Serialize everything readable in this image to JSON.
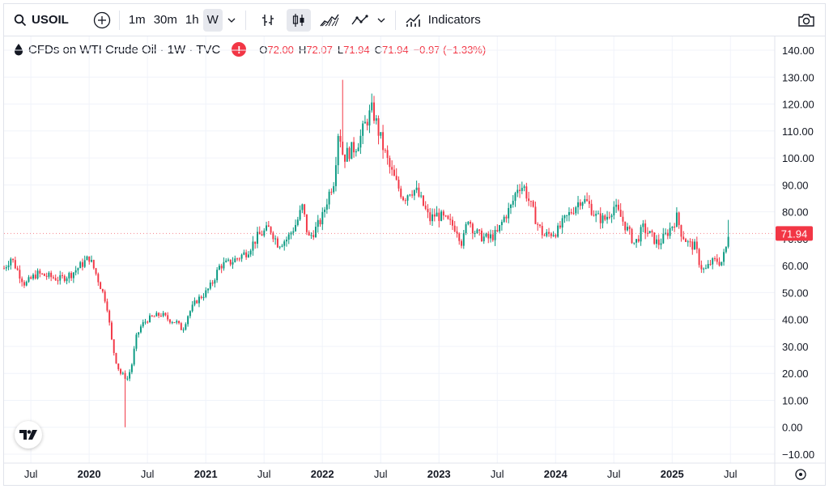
{
  "toolbar": {
    "symbol": "USOIL",
    "intervals": [
      "1m",
      "30m",
      "1h",
      "W"
    ],
    "active_interval": "W",
    "indicators_label": "Indicators"
  },
  "legend": {
    "title": "CFDs on WTI Crude Oil · 1W · TVC",
    "o_label": "O",
    "o_value": "72.00",
    "h_label": "H",
    "h_value": "72.07",
    "l_label": "L",
    "l_value": "71.94",
    "c_label": "C",
    "c_value": "71.94",
    "change": "−0.97 (−1.33%)"
  },
  "colors": {
    "up": "#089981",
    "down": "#f23645",
    "grid": "#f0f3fa",
    "text": "#131722"
  },
  "chart_data": {
    "type": "candlestick",
    "series_name": "CFDs on WTI Crude Oil",
    "interval": "1W",
    "last_price_label": "71.94",
    "ylim": [
      -15,
      145
    ],
    "y_ticks": [
      "140.00",
      "130.00",
      "120.00",
      "110.00",
      "100.00",
      "90.00",
      "80.00",
      "70.00",
      "60.00",
      "50.00",
      "40.00",
      "30.00",
      "20.00",
      "10.00",
      "0.00",
      "−10.00"
    ],
    "y_tick_values": [
      140,
      130,
      120,
      110,
      100,
      90,
      80,
      70,
      60,
      50,
      40,
      30,
      20,
      10,
      0,
      -10
    ],
    "x_ticks": [
      {
        "label": "Jul",
        "t": 2019.5
      },
      {
        "label": "2020",
        "t": 2020.0
      },
      {
        "label": "Jul",
        "t": 2020.5
      },
      {
        "label": "2021",
        "t": 2021.0
      },
      {
        "label": "Jul",
        "t": 2021.5
      },
      {
        "label": "2022",
        "t": 2022.0
      },
      {
        "label": "Jul",
        "t": 2022.5
      },
      {
        "label": "2023",
        "t": 2023.0
      },
      {
        "label": "Jul",
        "t": 2023.5
      },
      {
        "label": "2024",
        "t": 2024.0
      },
      {
        "label": "Jul",
        "t": 2024.5
      },
      {
        "label": "2025",
        "t": 2025.0
      },
      {
        "label": "Jul",
        "t": 2025.5
      }
    ],
    "x_range": [
      2019.27,
      2025.88
    ],
    "price_path": [
      [
        2019.27,
        59
      ],
      [
        2019.33,
        63
      ],
      [
        2019.4,
        57
      ],
      [
        2019.45,
        53
      ],
      [
        2019.55,
        57
      ],
      [
        2019.65,
        56
      ],
      [
        2019.75,
        55
      ],
      [
        2019.85,
        57
      ],
      [
        2019.95,
        61
      ],
      [
        2020.0,
        63
      ],
      [
        2020.05,
        58
      ],
      [
        2020.1,
        52
      ],
      [
        2020.15,
        46
      ],
      [
        2020.2,
        30
      ],
      [
        2020.24,
        23
      ],
      [
        2020.27,
        20
      ],
      [
        2020.3,
        19
      ],
      [
        2020.33,
        18
      ],
      [
        2020.37,
        24
      ],
      [
        2020.4,
        33
      ],
      [
        2020.45,
        38
      ],
      [
        2020.5,
        40
      ],
      [
        2020.55,
        41
      ],
      [
        2020.62,
        42
      ],
      [
        2020.68,
        40
      ],
      [
        2020.75,
        39
      ],
      [
        2020.8,
        36
      ],
      [
        2020.85,
        42
      ],
      [
        2020.92,
        47
      ],
      [
        2021.0,
        50
      ],
      [
        2021.05,
        53
      ],
      [
        2021.12,
        60
      ],
      [
        2021.2,
        61
      ],
      [
        2021.28,
        63
      ],
      [
        2021.35,
        65
      ],
      [
        2021.45,
        71
      ],
      [
        2021.55,
        74
      ],
      [
        2021.62,
        68
      ],
      [
        2021.7,
        70
      ],
      [
        2021.78,
        76
      ],
      [
        2021.83,
        82
      ],
      [
        2021.88,
        70
      ],
      [
        2021.95,
        74
      ],
      [
        2022.0,
        78
      ],
      [
        2022.05,
        86
      ],
      [
        2022.1,
        92
      ],
      [
        2022.14,
        112
      ],
      [
        2022.18,
        100
      ],
      [
        2022.22,
        102
      ],
      [
        2022.28,
        104
      ],
      [
        2022.33,
        108
      ],
      [
        2022.38,
        114
      ],
      [
        2022.43,
        118
      ],
      [
        2022.48,
        110
      ],
      [
        2022.52,
        104
      ],
      [
        2022.58,
        96
      ],
      [
        2022.64,
        90
      ],
      [
        2022.7,
        85
      ],
      [
        2022.75,
        88
      ],
      [
        2022.8,
        88
      ],
      [
        2022.86,
        83
      ],
      [
        2022.92,
        77
      ],
      [
        2022.97,
        79
      ],
      [
        2023.02,
        78
      ],
      [
        2023.08,
        76
      ],
      [
        2023.15,
        74
      ],
      [
        2023.2,
        68
      ],
      [
        2023.25,
        78
      ],
      [
        2023.3,
        73
      ],
      [
        2023.35,
        71
      ],
      [
        2023.42,
        70
      ],
      [
        2023.5,
        72
      ],
      [
        2023.56,
        78
      ],
      [
        2023.62,
        82
      ],
      [
        2023.68,
        90
      ],
      [
        2023.73,
        89
      ],
      [
        2023.78,
        83
      ],
      [
        2023.85,
        75
      ],
      [
        2023.9,
        71
      ],
      [
        2023.96,
        72
      ],
      [
        2024.02,
        73
      ],
      [
        2024.08,
        77
      ],
      [
        2024.15,
        81
      ],
      [
        2024.22,
        85
      ],
      [
        2024.28,
        83
      ],
      [
        2024.35,
        78
      ],
      [
        2024.42,
        77
      ],
      [
        2024.5,
        82
      ],
      [
        2024.56,
        78
      ],
      [
        2024.62,
        73
      ],
      [
        2024.68,
        68
      ],
      [
        2024.75,
        74
      ],
      [
        2024.82,
        71
      ],
      [
        2024.88,
        68
      ],
      [
        2024.94,
        71
      ],
      [
        2025.0,
        75
      ],
      [
        2025.04,
        78
      ],
      [
        2025.08,
        72
      ],
      [
        2025.14,
        68
      ],
      [
        2025.2,
        67
      ],
      [
        2025.24,
        60
      ],
      [
        2025.28,
        58
      ],
      [
        2025.33,
        61
      ],
      [
        2025.38,
        62
      ],
      [
        2025.42,
        61
      ],
      [
        2025.46,
        66
      ],
      [
        2025.48,
        72
      ],
      [
        2025.5,
        71.94
      ]
    ],
    "notable_points": [
      {
        "t": 2020.3,
        "low": 0,
        "note": "spike low"
      },
      {
        "t": 2022.18,
        "high": 129,
        "note": "spike high"
      },
      {
        "t": 2025.48,
        "high": 77
      }
    ]
  }
}
